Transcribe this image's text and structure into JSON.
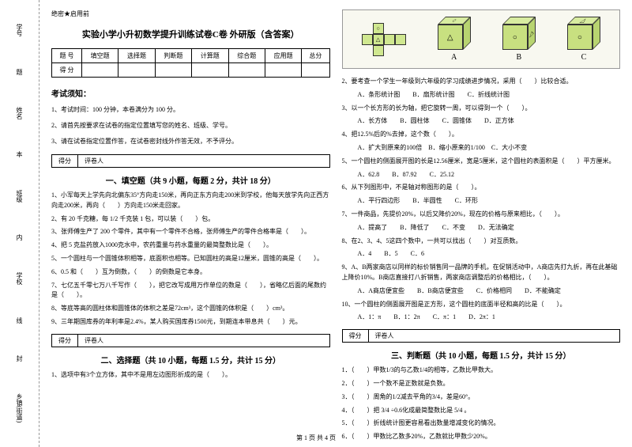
{
  "margin_labels": [
    "学号",
    "姓名",
    "班级",
    "学校",
    "乡镇(街道)"
  ],
  "margin_inner": [
    "题",
    "本",
    "内",
    "线",
    "封"
  ],
  "secret": "绝密★启用前",
  "title": "实验小学小升初数学提升训练试卷C卷 外研版（含答案）",
  "score_table": {
    "row1": [
      "题 号",
      "填空题",
      "选择题",
      "判断题",
      "计算题",
      "综合题",
      "应用题",
      "总分"
    ],
    "row2": [
      "得 分",
      "",
      "",
      "",
      "",
      "",
      "",
      ""
    ]
  },
  "notice_title": "考试须知：",
  "notices": [
    "1、考试时间：100 分钟，本卷满分为 100 分。",
    "2、请首先按要求在试卷的指定位置填写您的姓名、班级、学号。",
    "3、请在试卷指定位置作答，在试卷密封线外作答无效，不予评分。"
  ],
  "score_labels": [
    "得分",
    "评卷人"
  ],
  "section1": {
    "title": "一、填空题（共 9 小题，每题 2 分，共计 18 分）",
    "q": [
      "1、小军每天上学先向北偏东35°方向走150米，再向正东方向走200米到学校，他每天放学先向正西方向走200米，再向（　　）方向走150米走回家。",
      "2、有 20 千克糖，每 1/2 千克装 1 包，可以装（　　）包。",
      "3、张师傅生产了 200 个零件，其中有一个零件不合格，张师傅生产的零件合格率是（　　）。",
      "4、把 5 克盐药放入1000克水中，农药重量与药水重量的最简整数比是（　　）。",
      "5、一个圆柱与一个圆锥体积相等，底面积也相等。已知圆柱的高是12厘米，圆锥的高是（　　）。",
      "6、0.5 和（　　）互为倒数，（　　）的倒数是它本身。",
      "7、七亿五千零七万八千写作（　　），把它改写成用万作单位的数是（　　），省略亿后面的尾数约是（　　）。",
      "8、等底等高的圆柱体和圆锥体的体积之差是72cm³，这个圆锥的体积是（　　）cm³。",
      "9、三年期国库券的年利率是2.4%，某人购买国库券1500元，到期连本带息共（　　）元。"
    ]
  },
  "section2": {
    "title": "二、选择题（共 10 小题，每题 1.5 分，共计 15 分）",
    "q1": "1、选项中有3个立方体，其中不是用左边图形折成的是（　　）。",
    "cube_labels": [
      "A",
      "B",
      "C"
    ],
    "q": [
      "2、要考查一个学生一年级到六年级的学习成绩进步情况，采用（　　）比较合适。",
      "　A．条形统计图　　B．扇形统计图　　C．折线统计图",
      "3、以一个长方形的长为轴，把它旋转一周，可以得到一个（　　）。",
      "　A．长方体　　B．圆柱体　　C．圆锥体　　D．正方体",
      "4、把12.5%后的%去掉，这个数（　　）。",
      "　A．扩大到原来的100倍　B．缩小原来的1/100　C．大小不变",
      "5、一个圆柱的侧面展开图的长是12.56厘米，宽是5厘米，这个圆柱的表面积是（　　）平方厘米。",
      "　A．62.8　　B．87.92　　C．25.12",
      "6、从下列图形中，不是轴对称图形的是（　　）。",
      "　A．平行四边形　　B．半圆性　　C．环形",
      "7、一件商品，先提价20%，以后又降价20%，现在的价格与原来相比，（　　）。",
      "　A．提高了　　B．降低了　　C．不变　　D．无法确定",
      "8、在2、3、4、5这四个数中，一共可以找出（　　）对互质数。",
      "　A．4　　B．5　　C．6",
      "9、A、B两家商店以同样的标价销售同一品牌的手机，在促销活动中，A商店先打九折，再在此基础上降价10%。B商店直接打八折销售，两家商店调整后的价格相比，（　　）。",
      "　A．A商店便宜些　　B．B商店便宜些　　C．价格相同　　D．不能确定",
      "10、一个圆柱的侧面展开图是正方形，这个圆柱的底面半径和高的比是（　　）。",
      "　A．1：π　　B．1：2π　　C．π：1　　D．2π：1"
    ]
  },
  "section3": {
    "title": "三、判断题（共 10 小题，每题 1.5 分，共计 15 分）",
    "q": [
      "1．（　　）甲数1/3的与乙数1/4的相等，乙数比甲数大。",
      "2．（　　）一个数不是正数就是负数。",
      "3．（　　）周角的1/2减去平角的3/4，差是60°。",
      "4．（　　）把 3/4 ÷0.6化成最简整数比是 5/4 。",
      "5．（　　）折线统计图更容易看出数量增减变化的情况。",
      "6．（　　）甲数比乙数多20%，乙数就比甲数少20%。"
    ]
  },
  "footer": "第 1 页 共 4 页"
}
